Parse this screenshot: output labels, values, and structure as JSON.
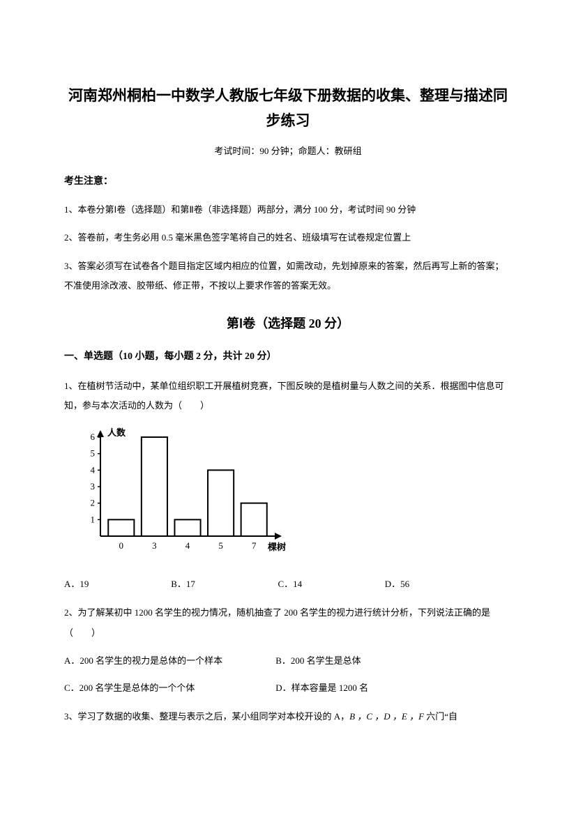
{
  "title": "河南郑州桐柏一中数学人教版七年级下册数据的收集、整理与描述同步练习",
  "subtitle": "考试时间：90 分钟；命题人：教研组",
  "notice_head": "考生注意：",
  "notices": [
    "1、本卷分第Ⅰ卷（选择题）和第Ⅱ卷（非选择题）两部分，满分 100 分，考试时间 90 分钟",
    "2、答卷前，考生务必用 0.5 毫米黑色签字笔将自己的姓名、班级填写在试卷规定位置上",
    "3、答案必须写在试卷各个题目指定区域内相应的位置，如需改动，先划掉原来的答案，然后再写上新的答案；不准使用涂改液、胶带纸、修正带，不按以上要求作答的答案无效。"
  ],
  "section1_head": "第Ⅰ卷（选择题  20 分）",
  "part1_head": "一、单选题（10 小题，每小题 2 分，共计 20 分）",
  "q1": "1、在植树节活动中，某单位组织职工开展植树竞赛，下图反映的是植树量与人数之间的关系．根据图中信息可知，参与本次活动的人数为（　　）",
  "q1_chart": {
    "type": "histogram",
    "y_label": "人数",
    "x_label": "棵树",
    "x_ticks": [
      "0",
      "3",
      "4",
      "5",
      "7"
    ],
    "y_ticks": [
      1,
      2,
      3,
      4,
      5,
      6
    ],
    "y_max": 6,
    "bars": [
      {
        "x_idx": 0,
        "height": 1
      },
      {
        "x_idx": 1,
        "height": 6
      },
      {
        "x_idx": 2,
        "height": 1
      },
      {
        "x_idx": 3,
        "height": 4
      },
      {
        "x_idx": 4,
        "height": 2
      }
    ],
    "axis_color": "#000000",
    "bar_stroke": "#000000",
    "bar_fill": "#ffffff",
    "font_size": 13
  },
  "q1_opts": {
    "A": "A．19",
    "B": "B．17",
    "C": "C．14",
    "D": "D．56"
  },
  "q2": "2、为了解某初中 1200 名学生的视力情况，随机抽查了 200 名学生的视力进行统计分析，下列说法正确的是（　　）",
  "q2_opts": {
    "A": "A．200 名学生的视力是总体的一个样本",
    "B": "B．200 名学生是总体",
    "C": "C．200 名学生是总体的一个个体",
    "D": "D．样本容量是 1200 名"
  },
  "q3_prefix": "3、学习了数据的收集、整理与表示之后，某小组同学对本校开设的 A，",
  "q3_letters": "B ，C ，D ，E ，F",
  "q3_suffix": " 六门“自"
}
